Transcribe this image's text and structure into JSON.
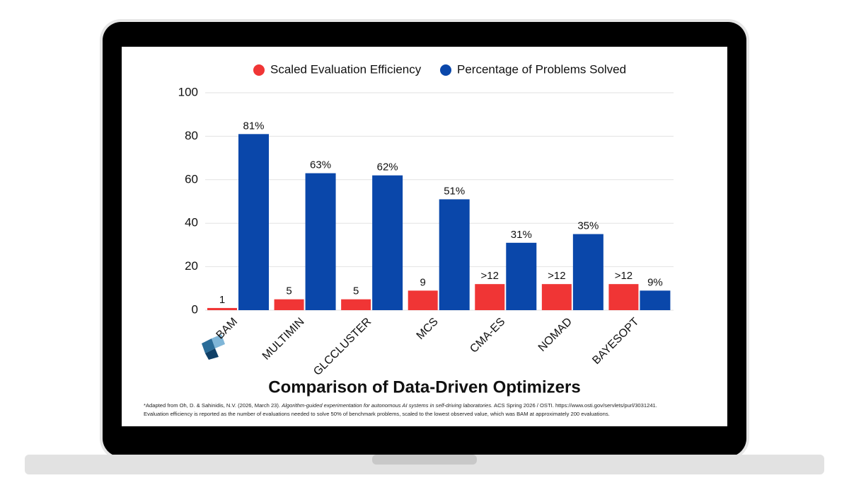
{
  "chart_data": {
    "type": "bar",
    "title": "Comparison of Data-Driven Optimizers",
    "footnote": {
      "prefix": "*Adapted from Oh, D. & Sahinidis, N.V. (2026, March 23).",
      "citation_title": "Algorithm-guided experimentation for autonomous AI systems in self-driving laboratories.",
      "suffix": "ACS Spring 2026 / OSTI. https://www.osti.gov/servlets/purl/3031241.",
      "line2": "Evaluation efficiency is reported as the number of evaluations needed to solve 50% of benchmark problems, scaled to the lowest observed value, which was BAM at approximately 200 evaluations."
    },
    "categories": [
      "BAM",
      "MULTIMIN",
      "GLCCLUSTER",
      "MCS",
      "CMA-ES",
      "NOMAD",
      "BAYESOPT"
    ],
    "series": [
      {
        "name": "Scaled Evaluation Efficiency",
        "color": "#f03535",
        "values": [
          1,
          5,
          5,
          9,
          12,
          12,
          12
        ],
        "value_labels": [
          "1",
          "5",
          "5",
          "9",
          ">12",
          ">12",
          ">12"
        ]
      },
      {
        "name": "Percentage of Problems Solved",
        "color": "#0a47aa",
        "values": [
          81,
          63,
          62,
          51,
          31,
          35,
          9
        ],
        "value_labels": [
          "81%",
          "63%",
          "62%",
          "51%",
          "31%",
          "35%",
          "9%"
        ]
      }
    ],
    "ylim": [
      0,
      100
    ],
    "yticks": [
      0,
      20,
      40,
      60,
      80,
      100
    ],
    "grid": true,
    "legend": "top"
  }
}
